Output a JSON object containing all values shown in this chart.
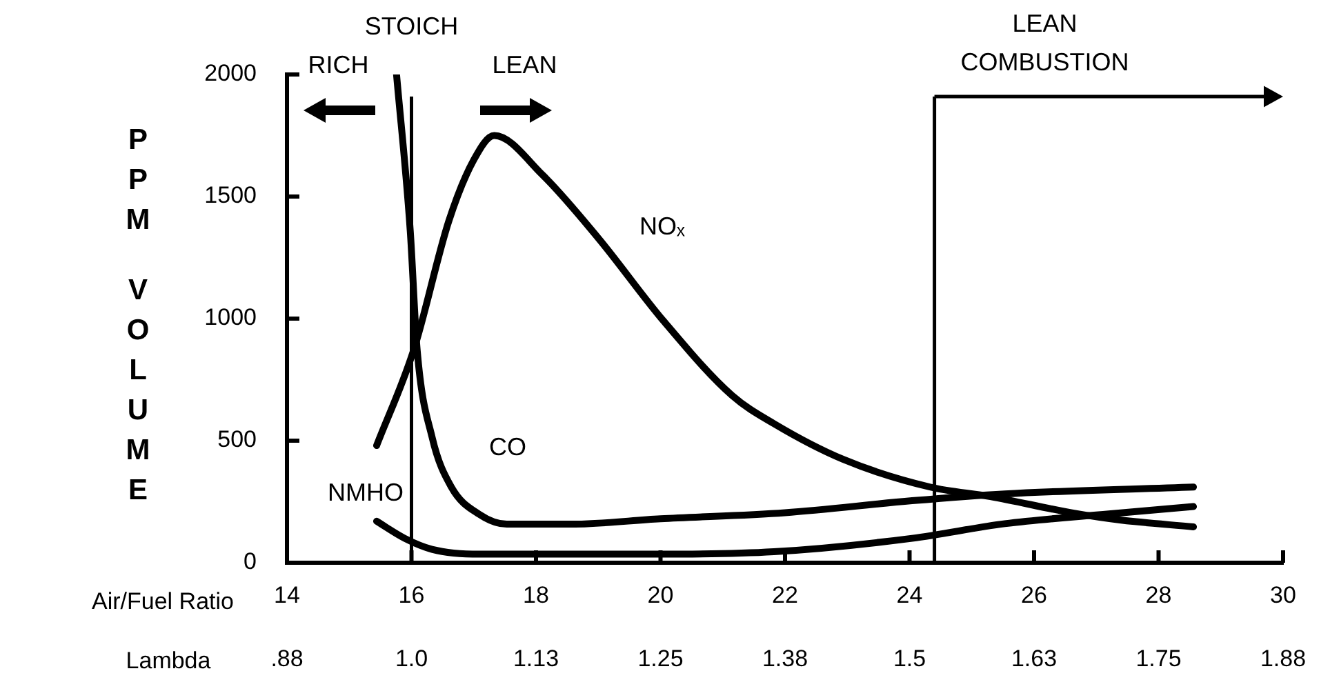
{
  "chart_data": {
    "type": "line",
    "xlabel": "Air/Fuel Ratio",
    "ylabel": "PPM VOLUME",
    "x2label": "Lambda",
    "xlim": [
      14,
      30
    ],
    "xticks": [
      14,
      16,
      18,
      20,
      22,
      24,
      26,
      28,
      30
    ],
    "x2lim": [
      0.875,
      1.875
    ],
    "x2ticks": [
      {
        "value": 0.875,
        "label": ".88"
      },
      {
        "value": 1,
        "label": "1.0"
      },
      {
        "value": 1.125,
        "label": "1.13"
      },
      {
        "value": 1.25,
        "label": "1.25"
      },
      {
        "value": 1.375,
        "label": "1.38"
      },
      {
        "value": 1.5,
        "label": "1.5"
      },
      {
        "value": 1.625,
        "label": "1.63"
      },
      {
        "value": 1.75,
        "label": "1.75"
      },
      {
        "value": 1.875,
        "label": "1.88"
      }
    ],
    "ylim": [
      0,
      2000
    ],
    "yticks": [
      0,
      500,
      1000,
      1500,
      2000
    ],
    "series": [
      {
        "color": "#000000",
        "x": [
          15.44,
          16.04,
          16.6,
          17.0,
          17.33,
          18.1,
          19.0,
          20.05,
          21.15,
          21.82,
          22.93,
          24.33,
          25.3,
          26.64,
          27.38,
          28.56
        ],
        "values": [
          480,
          875,
          1400,
          1650,
          1750,
          1590,
          1330,
          990,
          685,
          570,
          424,
          310,
          271,
          203,
          175,
          147
        ]
      },
      {
        "color": "#000000",
        "x": [
          15.76,
          15.98,
          16.09,
          16.33,
          16.64,
          17.09,
          17.53,
          18.56,
          20,
          22,
          24.04,
          25.53,
          28.56
        ],
        "values": [
          2000,
          1360,
          875,
          515,
          310,
          198,
          158,
          158,
          180,
          205,
          254,
          282,
          310
        ]
      },
      {
        "color": "#000000",
        "x": [
          15.44,
          15.89,
          16.33,
          17.09,
          20,
          21.82,
          24.04,
          25.53,
          27.2,
          28.56
        ],
        "values": [
          170,
          100,
          55,
          35,
          35,
          45,
          100,
          160,
          200,
          230
        ]
      }
    ],
    "ref_lines": [
      {
        "axis": "x",
        "value": 16,
        "label": "STOICH"
      },
      {
        "axis": "x",
        "value": 24.4,
        "label": "LEAN COMBUSTION"
      }
    ],
    "annotations": [
      "RICH",
      "LEAN",
      "NOₓ",
      "CO",
      "NMHO"
    ],
    "grid": false,
    "legend": false,
    "marker": "none",
    "line_style": "solid"
  }
}
